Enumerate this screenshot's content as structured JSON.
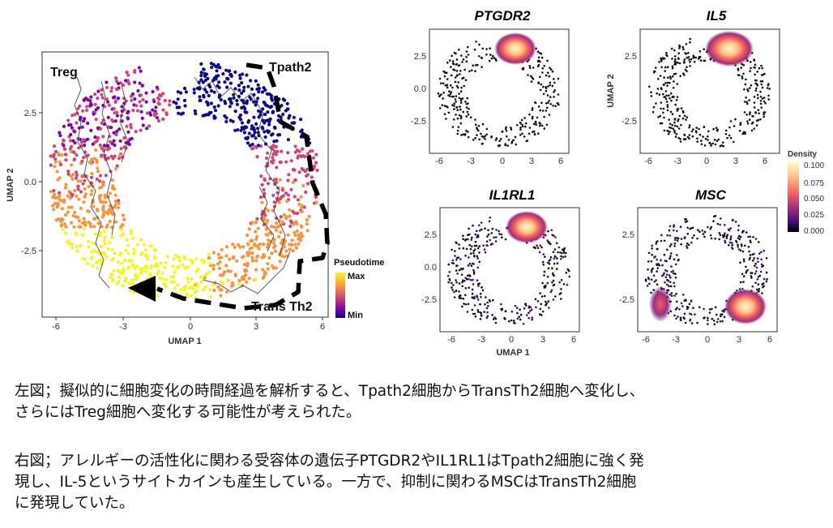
{
  "main_plot": {
    "xlabel": "UMAP 1",
    "ylabel": "UMAP 2",
    "x_ticks": [
      "-6",
      "-3",
      "0",
      "3",
      "6"
    ],
    "y_ticks": [
      "2.5",
      "0.0",
      "-2.5"
    ],
    "cluster_labels": [
      "Treg",
      "Tpath2",
      "Trans Th2"
    ],
    "legend": {
      "title": "Pseudotime",
      "max_label": "Max",
      "min_label": "Min",
      "colors": [
        "#f0f921",
        "#f89540",
        "#cc4778",
        "#7e03a8",
        "#0d0887"
      ]
    }
  },
  "density_panels": [
    {
      "gene": "PTGDR2"
    },
    {
      "gene": "IL5"
    },
    {
      "gene": "IL1RL1"
    },
    {
      "gene": "MSC"
    }
  ],
  "density_axes": {
    "xlabel": "UMAP 1",
    "ylabel": "UMAP 2",
    "top_x_ticks": [
      "-6",
      "-3",
      "0",
      "3",
      "6"
    ],
    "bottom_x_ticks": [
      "-6",
      "-3",
      "0",
      "3",
      "6"
    ],
    "y_ticks": [
      "2.5",
      "0.0",
      "-2.5"
    ]
  },
  "density_legend": {
    "title": "Density",
    "ticks": [
      "0.100",
      "0.075",
      "0.050",
      "0.025",
      "0.000"
    ],
    "colors": [
      "#fcfdbf",
      "#fec287",
      "#f1605d",
      "#9e2f7f",
      "#440f76",
      "#000004"
    ]
  },
  "caption": {
    "left": [
      "左図；擬似的に細胞変化の時間経過を解析すると、Tpath2細胞からTransTh2細胞へ変化し、",
      "さらにはTreg細胞へ変化する可能性が考えられた。"
    ],
    "right": [
      "右図；アレルギーの活性化に関わる受容体の遺伝子PTGDR2やIL1RL1はTpath2細胞に強く発",
      "現し、IL-5というサイトカインも産生している。一方で、抑制に関わるMSCはTransTh2細胞",
      "に発現していた。"
    ]
  }
}
